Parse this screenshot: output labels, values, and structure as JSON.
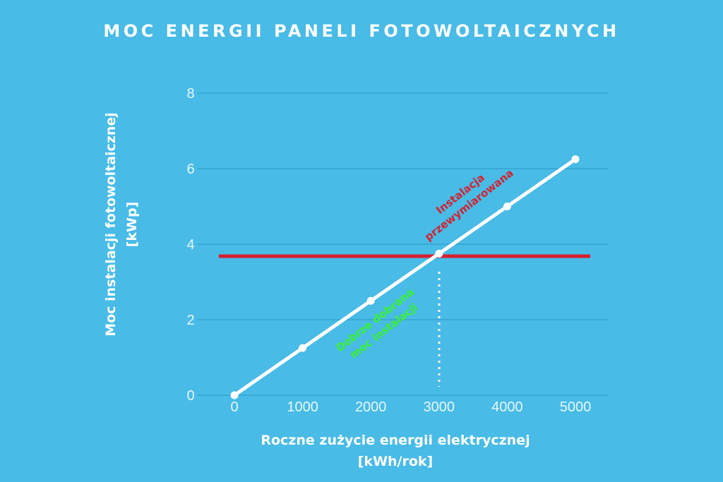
{
  "title": "MOC ENERGII PANELI FOTOWOLTAICZNYCH",
  "colors": {
    "background": "#48BBE6",
    "line": "#FFFFFF",
    "threshold": "#D6202E",
    "good_label": "#3AF22F",
    "over_label": "#D6202E",
    "grid": "#2E9FCC"
  },
  "chart_data": {
    "type": "line",
    "title": "MOC ENERGII PANELI FOTOWOLTAICZNYCH",
    "xlabel": "Roczne zużycie energii elektrycznej [kWh/rok]",
    "ylabel": "Moc instalacji fotowoltaicznej [kWp]",
    "x": [
      0,
      1000,
      2000,
      3000,
      4000,
      5000
    ],
    "series": [
      {
        "name": "Moc instalacji",
        "values": [
          0,
          1.25,
          2.5,
          3.75,
          5,
          6.25
        ]
      }
    ],
    "x_ticks": [
      "0",
      "1000",
      "2000",
      "3000",
      "4000",
      "5000"
    ],
    "y_ticks": [
      "0",
      "2",
      "4",
      "6",
      "8"
    ],
    "ylim": [
      0,
      8
    ],
    "grid": true,
    "legend": "none",
    "annotations": [
      {
        "type": "hline",
        "y": 3.7,
        "color": "#D6202E"
      },
      {
        "type": "vline_dotted",
        "x": 3000,
        "y_from": 0,
        "y_to": 3.7
      },
      {
        "type": "text",
        "text": "Instalacja przewymiarowana",
        "color": "#D6202E"
      },
      {
        "type": "text",
        "text": "Dobrze dobrana moc instalacji",
        "color": "#3AF22F"
      }
    ]
  },
  "axes": {
    "ylabel_line1": "Moc instalacji fotowoltaicznej",
    "ylabel_line2": "[kWp]",
    "xlabel_line1": "Roczne zużycie energii elektrycznej",
    "xlabel_line2": "[kWh/rok]"
  },
  "annotations": {
    "over_line1": "Instalacja",
    "over_line2": "przewymiarowana",
    "good_line1": "Dobrze dobrana",
    "good_line2": "moc instalacji"
  }
}
